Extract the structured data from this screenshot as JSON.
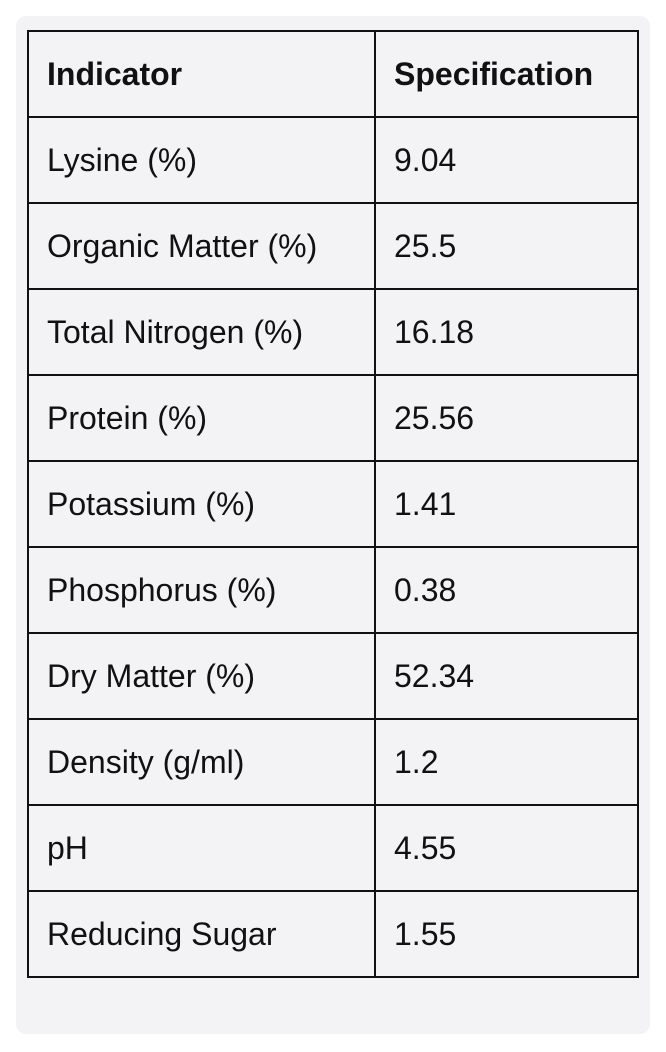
{
  "table": {
    "headers": {
      "indicator": "Indicator",
      "specification": "Specification"
    },
    "rows": [
      {
        "indicator": "Lysine (%)",
        "specification": "9.04"
      },
      {
        "indicator": "Organic Matter (%)",
        "specification": "25.5"
      },
      {
        "indicator": "Total Nitrogen (%)",
        "specification": "16.18"
      },
      {
        "indicator": "Protein (%)",
        "specification": "25.56"
      },
      {
        "indicator": "Potassium (%)",
        "specification": "1.41"
      },
      {
        "indicator": "Phosphorus (%)",
        "specification": "0.38"
      },
      {
        "indicator": "Dry Matter (%)",
        "specification": "52.34"
      },
      {
        "indicator": "Density (g/ml)",
        "specification": "1.2"
      },
      {
        "indicator": "pH",
        "specification": "4.55"
      },
      {
        "indicator": "Reducing Sugar",
        "specification": "1.55"
      }
    ]
  }
}
